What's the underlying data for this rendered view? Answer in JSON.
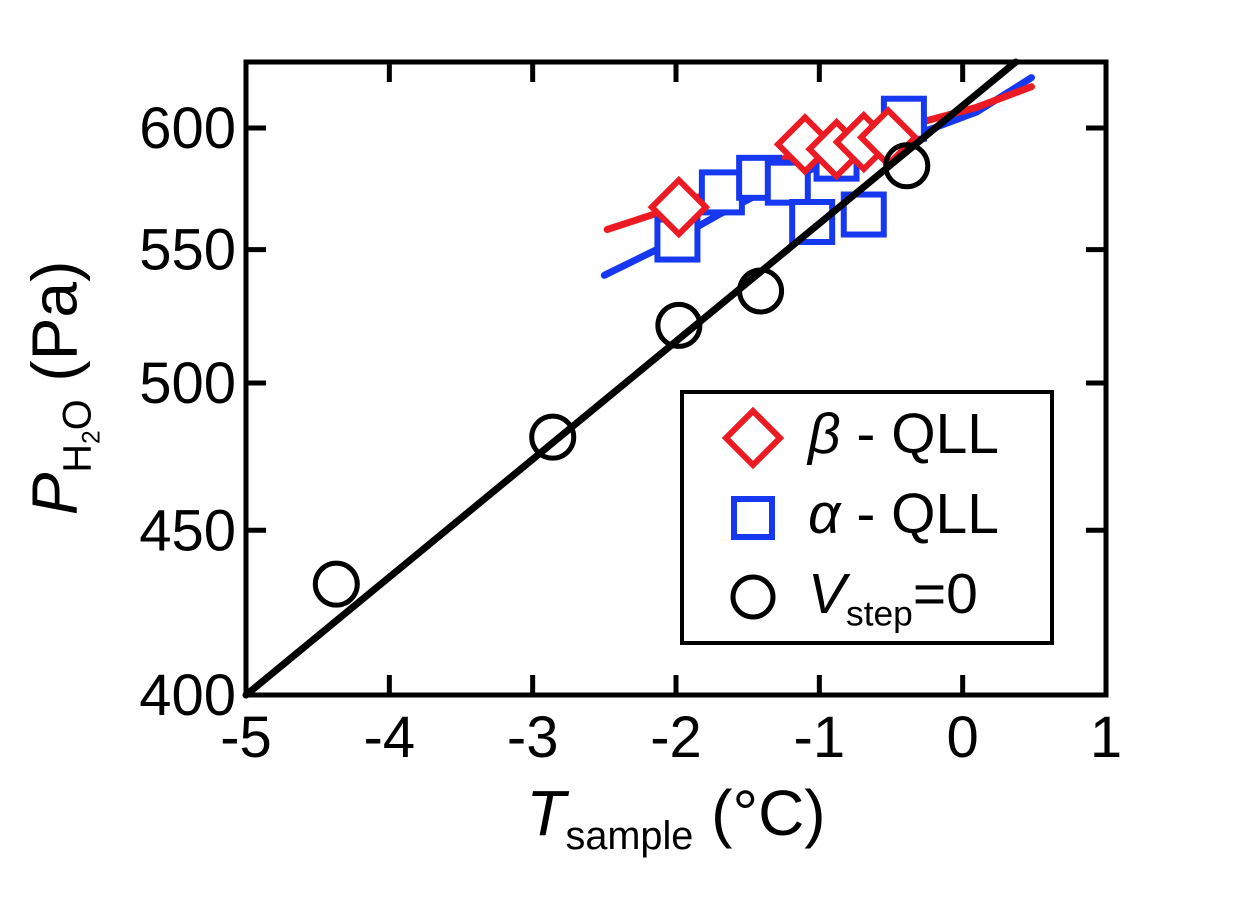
{
  "figure": {
    "background": "#ffffff"
  },
  "chart_data": {
    "type": "scatter",
    "title": "",
    "xlabel": {
      "lead_italic": "T",
      "sub": "sample",
      "tail": " (°C)"
    },
    "ylabel": {
      "lead_italic": "P",
      "sub_main": "H",
      "sub_sub": "2",
      "sub_tail": "O",
      "tail": " (Pa)"
    },
    "xscale": "linear",
    "yscale": "log",
    "xlim": [
      -5,
      1
    ],
    "ylim": [
      400,
      629
    ],
    "grid": false,
    "axis_color": "#000000",
    "xticks": {
      "values": [
        -5,
        -4,
        -3,
        -2,
        -1,
        0,
        1
      ],
      "labels": [
        "-5",
        "-4",
        "-3",
        "-2",
        "-1",
        "0",
        "1"
      ]
    },
    "yticks": {
      "values": [
        400,
        450,
        500,
        550,
        600
      ],
      "labels": [
        "400",
        "450",
        "500",
        "550",
        "600"
      ]
    },
    "series": [
      {
        "name": "beta-QLL",
        "marker": "diamond",
        "color": "#ec1b23",
        "fill": "#ffffff",
        "zorder": 4,
        "points": [
          [
            -1.98,
            567
          ],
          [
            -1.1,
            593
          ],
          [
            -0.88,
            591
          ],
          [
            -0.69,
            594
          ],
          [
            -0.52,
            596
          ]
        ]
      },
      {
        "name": "alpha-QLL",
        "marker": "square",
        "color": "#1638f0",
        "fill": "#ffffff",
        "zorder": 3,
        "points": [
          [
            -1.99,
            554
          ],
          [
            -1.68,
            573
          ],
          [
            -1.42,
            579
          ],
          [
            -1.22,
            577
          ],
          [
            -1.05,
            561
          ],
          [
            -0.88,
            587
          ],
          [
            -0.69,
            564
          ],
          [
            -0.41,
            604
          ]
        ]
      },
      {
        "name": "Vstep=0",
        "marker": "circle",
        "color": "#000000",
        "fill": "none",
        "zorder": 6,
        "points": [
          [
            -4.37,
            433
          ],
          [
            -2.86,
            481
          ],
          [
            -1.98,
            521
          ],
          [
            -1.41,
            534
          ],
          [
            -0.39,
            584
          ]
        ]
      }
    ],
    "fit_curves": [
      {
        "name": "alpha-fit",
        "color": "#1638f0",
        "zorder": 1,
        "points": [
          [
            -2.5,
            540
          ],
          [
            -2.1,
            551
          ],
          [
            -1.7,
            564
          ],
          [
            -1.3,
            576
          ],
          [
            -1.0,
            584
          ],
          [
            -0.6,
            592
          ],
          [
            -0.2,
            600
          ],
          [
            0.1,
            607
          ],
          [
            0.48,
            622
          ]
        ]
      },
      {
        "name": "beta-fit",
        "color": "#ec1b23",
        "zorder": 2,
        "points": [
          [
            -2.48,
            558
          ],
          [
            -2.0,
            567
          ],
          [
            -1.5,
            580
          ],
          [
            -1.1,
            591
          ],
          [
            -0.8,
            595
          ],
          [
            -0.5,
            599
          ],
          [
            -0.2,
            604
          ],
          [
            0.1,
            609
          ],
          [
            0.48,
            618
          ]
        ]
      },
      {
        "name": "ice-sublimation-line",
        "color": "#000000",
        "zorder": 5,
        "points": [
          [
            -5.0,
            400
          ],
          [
            0.37,
            629
          ]
        ]
      }
    ],
    "legend": {
      "position": "inside lower-right",
      "entries": [
        {
          "id": "beta-qll",
          "marker": "diamond",
          "color": "#ec1b23",
          "label": {
            "lead_italic": "β",
            "sub": "",
            "tail": " - QLL"
          }
        },
        {
          "id": "alpha-qll",
          "marker": "square",
          "color": "#1638f0",
          "label": {
            "lead_italic": "α",
            "sub": "",
            "tail": " - QLL"
          }
        },
        {
          "id": "vstep-0",
          "marker": "circle",
          "color": "#000000",
          "label": {
            "lead_italic": "V",
            "sub": "step",
            "tail": "=0"
          }
        }
      ]
    }
  }
}
